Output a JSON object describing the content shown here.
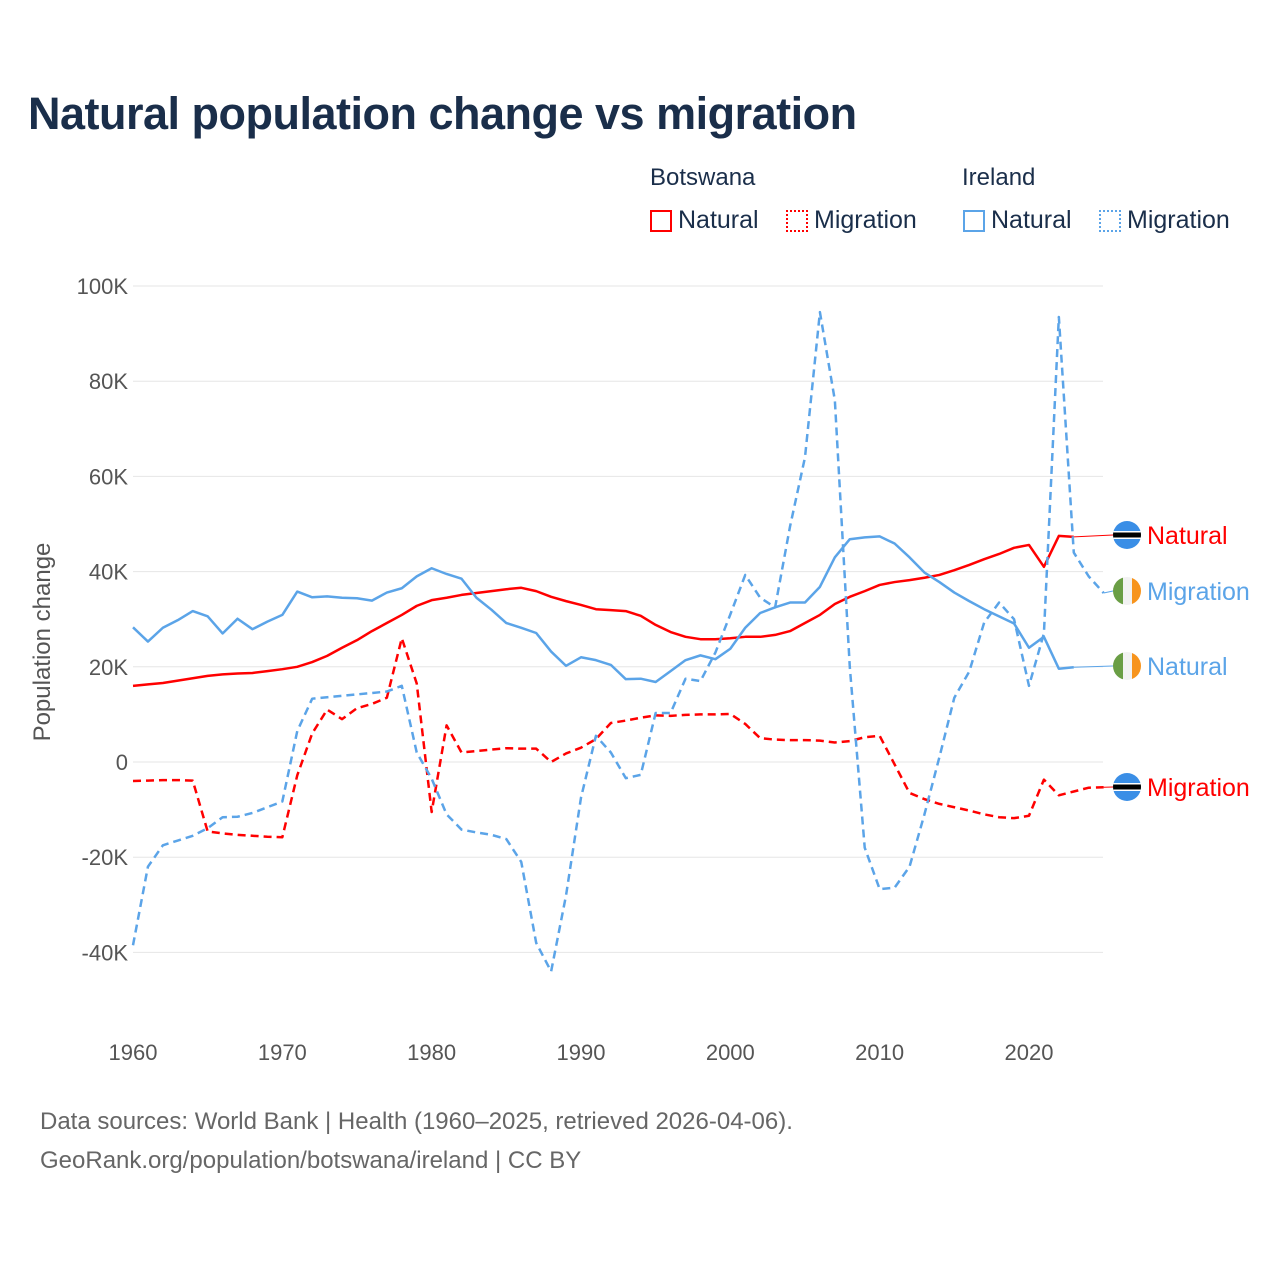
{
  "title": "Natural population change vs migration",
  "legend": {
    "groups": [
      {
        "name": "Botswana",
        "items": [
          {
            "label": "Natural",
            "style": "solid",
            "color": "#ff0000"
          },
          {
            "label": "Migration",
            "style": "dotted",
            "color": "#ff0000"
          }
        ]
      },
      {
        "name": "Ireland",
        "items": [
          {
            "label": "Natural",
            "style": "solid",
            "color": "#5ba4e8"
          },
          {
            "label": "Migration",
            "style": "dotted",
            "color": "#5ba4e8"
          }
        ]
      }
    ]
  },
  "footer": {
    "line1": "Data sources: World Bank | Health (1960–2025, retrieved 2026-04-06).",
    "line2": "GeoRank.org/population/botswana/ireland | CC BY"
  },
  "chart_data": {
    "type": "line",
    "title": "Natural population change vs migration",
    "xlabel": "",
    "ylabel": "Population change",
    "xlim": [
      1960,
      2025
    ],
    "ylim": [
      -50000,
      100000
    ],
    "xticks": [
      1960,
      1970,
      1980,
      1990,
      2000,
      2010,
      2020
    ],
    "yticks": [
      -40000,
      -20000,
      0,
      20000,
      40000,
      60000,
      80000,
      100000
    ],
    "ytick_labels": [
      "-40K",
      "-20K",
      "0",
      "20K",
      "40K",
      "60K",
      "80K",
      "100K"
    ],
    "grid": true,
    "x_start": 1960,
    "series": [
      {
        "name": "Botswana Natural",
        "end_label": "Natural",
        "country": "Botswana",
        "color": "#ff0000",
        "dash": false,
        "values": [
          16.0,
          16.3,
          16.6,
          17.1,
          17.6,
          18.1,
          18.4,
          18.6,
          18.7,
          19.1,
          19.5,
          20.0,
          21.0,
          22.3,
          24.0,
          25.6,
          27.5,
          29.2,
          30.9,
          32.8,
          34.0,
          34.5,
          35.1,
          35.5,
          35.9,
          36.3,
          36.6,
          35.9,
          34.7,
          33.8,
          33.0,
          32.1,
          31.9,
          31.7,
          30.7,
          28.8,
          27.3,
          26.3,
          25.8,
          25.8,
          26.0,
          26.3,
          26.3,
          26.7,
          27.5,
          29.2,
          30.9,
          33.2,
          34.7,
          35.9,
          37.2,
          37.8,
          38.2,
          38.7,
          39.3,
          40.3,
          41.4,
          42.6,
          43.7,
          45.0,
          45.6,
          41.0,
          47.5,
          47.3
        ]
      },
      {
        "name": "Botswana Migration",
        "end_label": "Migration",
        "country": "Botswana",
        "color": "#ff0000",
        "dash": true,
        "values": [
          -4.0,
          -3.9,
          -3.8,
          -3.8,
          -3.9,
          -14.6,
          -15.0,
          -15.3,
          -15.5,
          -15.7,
          -15.8,
          -2.8,
          6.0,
          11.0,
          9.0,
          11.3,
          12.2,
          13.5,
          26.0,
          16.5,
          -10.5,
          7.7,
          2.0,
          2.3,
          2.6,
          2.9,
          2.8,
          2.8,
          0.0,
          1.8,
          3.0,
          4.8,
          8.2,
          8.7,
          9.3,
          9.8,
          9.7,
          9.9,
          10.0,
          10.0,
          10.1,
          8.0,
          5.0,
          4.7,
          4.6,
          4.6,
          4.5,
          4.1,
          4.4,
          5.2,
          5.5,
          -0.5,
          -6.5,
          -7.8,
          -8.8,
          -9.5,
          -10.2,
          -11.0,
          -11.6,
          -11.8,
          -11.3,
          -3.7,
          -7.0,
          -6.2,
          -5.4,
          -5.3
        ]
      },
      {
        "name": "Ireland Natural",
        "end_label": "Natural",
        "country": "Ireland",
        "color": "#5ba4e8",
        "dash": false,
        "values": [
          28.3,
          25.3,
          28.2,
          29.8,
          31.7,
          30.6,
          27.0,
          30.1,
          27.9,
          29.5,
          30.9,
          35.8,
          34.6,
          34.8,
          34.5,
          34.4,
          33.9,
          35.6,
          36.5,
          39.0,
          40.7,
          39.5,
          38.5,
          34.5,
          32.0,
          29.2,
          28.2,
          27.1,
          23.2,
          20.2,
          22.0,
          21.4,
          20.4,
          17.4,
          17.5,
          16.8,
          19.1,
          21.4,
          22.4,
          21.6,
          23.8,
          28.2,
          31.3,
          32.5,
          33.5,
          33.5,
          36.8,
          43.0,
          46.8,
          47.2,
          47.4,
          45.9,
          43.0,
          39.8,
          37.8,
          35.6,
          33.8,
          32.1,
          30.6,
          29.1,
          24.0,
          26.3,
          19.6,
          19.9
        ]
      },
      {
        "name": "Ireland Migration",
        "end_label": "Migration",
        "country": "Ireland",
        "color": "#5ba4e8",
        "dash": true,
        "values": [
          -38.5,
          -22.0,
          -17.5,
          -16.5,
          -15.5,
          -13.9,
          -11.6,
          -11.5,
          -10.7,
          -9.5,
          -8.3,
          6.5,
          13.3,
          13.6,
          13.9,
          14.2,
          14.5,
          14.8,
          16.0,
          2.0,
          -3.5,
          -11.0,
          -14.2,
          -14.8,
          -15.3,
          -16.2,
          -21.0,
          -38.0,
          -44.0,
          -28.0,
          -7.5,
          5.5,
          2.0,
          -3.4,
          -2.7,
          10.3,
          10.3,
          17.5,
          17.0,
          23.0,
          31.0,
          39.3,
          34.5,
          32.5,
          49.5,
          64.0,
          94.5,
          76.0,
          20.0,
          -18.0,
          -26.7,
          -26.4,
          -22.0,
          -11.0,
          1.0,
          13.5,
          19.0,
          29.3,
          33.5,
          30.0,
          16.0,
          27.0,
          93.5,
          44.0,
          39.0,
          35.5
        ]
      }
    ],
    "value_unit": "thousands"
  }
}
